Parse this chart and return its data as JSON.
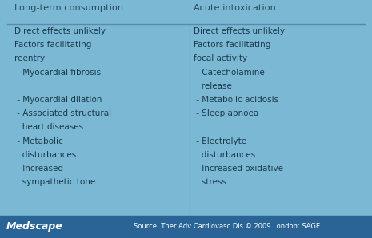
{
  "bg_color": "#7ab8d4",
  "footer_bg": "#2a6496",
  "footer_text_color": "#ffffff",
  "header_text_color": "#2a4a5e",
  "body_text_color": "#1a3a4a",
  "col1_header": "Long-term consumption",
  "col2_header": "Acute intoxication",
  "col1_lines": [
    "Direct effects unlikely",
    "Factors facilitating",
    "reentry",
    " - Myocardial fibrosis",
    "",
    " - Myocardial dilation",
    " - Associated structural",
    "   heart diseases",
    " - Metabolic",
    "   disturbances",
    " - Increased",
    "   sympathetic tone"
  ],
  "col2_lines": [
    "Direct effects unlikely",
    "Factors facilitating",
    "focal activity",
    " - Catecholamine",
    "   release",
    " - Metabolic acidosis",
    " - Sleep apnoea",
    "",
    " - Electrolyte",
    "   disturbances",
    " - Increased oxidative",
    "   stress"
  ],
  "medscape_text": "Medscape",
  "source_text": "Source: Ther Adv Cardiovasc Dis © 2009 London: SAGE",
  "divider_color": "#5a9ab8",
  "header_line_color": "#5a8aaa",
  "figw": 4.65,
  "figh": 2.98,
  "dpi": 100
}
